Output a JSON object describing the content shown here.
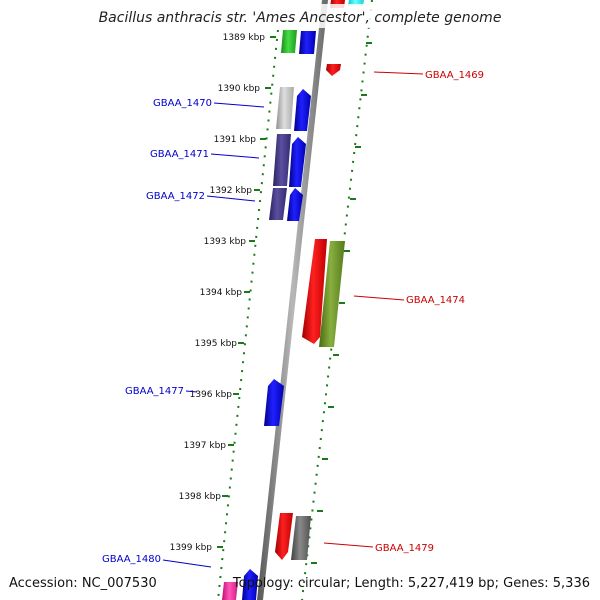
{
  "title": "Bacillus anthracis str. 'Ames Ancestor', complete genome",
  "footer": {
    "accession": "Accession: NC_007530",
    "stats": "Topology: circular; Length: 5,227,419 bp; Genes: 5,336"
  },
  "colors": {
    "forward_label": "#0000cc",
    "reverse_label": "#cc0000",
    "forward_gene": "#0000ff",
    "reverse_gene": "#ff0000",
    "backbone": "#808080",
    "ticks": "#1a7a1a",
    "green_feature": "#33cc33",
    "light_gray_feature": "#c8c8c8",
    "slate_feature": "#4a3f8c",
    "olive_feature": "#6b8e23",
    "dark_gray_feature": "#6e6e6e",
    "cyan_feature": "#33ffff",
    "magenta_feature": "#ff33aa"
  },
  "kbp_ticks": [
    "1389 kbp",
    "1390 kbp",
    "1391 kbp",
    "1392 kbp",
    "1393 kbp",
    "1394 kbp",
    "1395 kbp",
    "1396 kbp",
    "1397 kbp",
    "1398 kbp",
    "1399 kbp"
  ],
  "gene_labels": [
    {
      "name": "GBAA_1469",
      "strand": "reverse"
    },
    {
      "name": "GBAA_1470",
      "strand": "forward"
    },
    {
      "name": "GBAA_1471",
      "strand": "forward"
    },
    {
      "name": "GBAA_1472",
      "strand": "forward"
    },
    {
      "name": "GBAA_1474",
      "strand": "reverse"
    },
    {
      "name": "GBAA_1477",
      "strand": "forward"
    },
    {
      "name": "GBAA_1479",
      "strand": "reverse"
    },
    {
      "name": "GBAA_1480",
      "strand": "forward"
    }
  ]
}
